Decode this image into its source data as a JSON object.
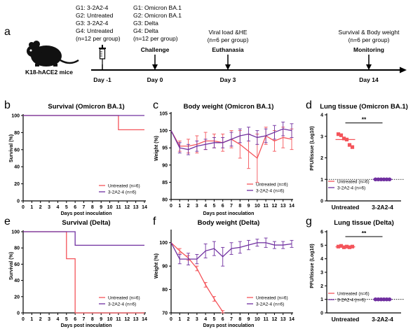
{
  "colors": {
    "untreated": "#f4545a",
    "treated": "#7030a0",
    "axis": "#000000"
  },
  "timeline": {
    "panel_letter": "a",
    "mouse_label": "K18-hACE2 mice",
    "icon": "mouse-silhouette-icon",
    "syringe_icon": "syringe-icon",
    "groups_left": [
      "G1: 3-2A2-4",
      "G2: Untreated",
      "G3: 3-2A2-4",
      "G4: Untreated",
      "(n=12 per group)"
    ],
    "day_m1": "Day -1",
    "groups_mid": [
      "G1: Omicron BA.1",
      "G2: Omicron BA.1",
      "G3: Delta",
      "G4: Delta",
      "(n=12 per group)"
    ],
    "challenge": "Challenge",
    "day_0": "Day 0",
    "viral_1": "Viral load &HE",
    "viral_2": "(n=6 per group)",
    "euthanasia": "Euthanasia",
    "day_3": "Day 3",
    "survival_1": "Survival & Body weight",
    "survival_2": "(n=6 per group)",
    "monitoring": "Monitoring",
    "day_14": "Day 14"
  },
  "panels": {
    "b": {
      "letter": "b",
      "title": "Survival (Omicron BA.1)",
      "ylabel": "Survival (%)",
      "xlabel": "Days post inoculation"
    },
    "c": {
      "letter": "c",
      "title": "Body weight (Omicron BA.1)",
      "ylabel": "Weight (%)",
      "xlabel": "Days post inoculation"
    },
    "d": {
      "letter": "d",
      "title": "Lung tissue (Omicron BA.1)",
      "ylabel": "PFU/tissue (Log10)",
      "sig": "**"
    },
    "e": {
      "letter": "e",
      "title": "Survival (Delta)",
      "ylabel": "Survival (%)",
      "xlabel": "Days post inoculation"
    },
    "f": {
      "letter": "f",
      "title": "Body weight (Delta)",
      "ylabel": "Weight (%)",
      "xlabel": "Days post inoculation"
    },
    "g": {
      "letter": "g",
      "title": "Lung tissue (Delta)",
      "ylabel": "PFU/tissue (Log10)",
      "sig": "**"
    }
  },
  "legend": {
    "untreated": "Untreated (n=6)",
    "treated": "3-2A2-4 (n=6)"
  },
  "chart_data": [
    {
      "id": "b",
      "type": "line",
      "step": true,
      "title": "Survival (Omicron BA.1)",
      "xlabel": "Days post inoculation",
      "ylabel": "Survival (%)",
      "xlim": [
        0,
        14
      ],
      "ylim": [
        0,
        100
      ],
      "xticks": [
        0,
        1,
        2,
        3,
        4,
        5,
        6,
        7,
        8,
        9,
        10,
        11,
        12,
        13,
        14
      ],
      "yticks": [
        0,
        20,
        40,
        60,
        80,
        100
      ],
      "series": [
        {
          "name": "Untreated (n=6)",
          "color": "#f4545a",
          "x": [
            0,
            11,
            11,
            14
          ],
          "y": [
            100,
            100,
            83.3,
            83.3
          ]
        },
        {
          "name": "3-2A2-4 (n=6)",
          "color": "#7030a0",
          "x": [
            0,
            14
          ],
          "y": [
            100,
            100
          ]
        }
      ]
    },
    {
      "id": "c",
      "type": "line",
      "title": "Body weight (Omicron BA.1)",
      "xlabel": "Days post inoculation",
      "ylabel": "Weight (%)",
      "xlim": [
        0,
        14
      ],
      "ylim": [
        80,
        105
      ],
      "xticks": [
        0,
        1,
        2,
        3,
        4,
        5,
        6,
        7,
        8,
        9,
        10,
        11,
        12,
        13,
        14
      ],
      "yticks": [
        80,
        85,
        90,
        95,
        100,
        105
      ],
      "series": [
        {
          "name": "Untreated (n=6)",
          "color": "#f4545a",
          "x": [
            0,
            1,
            2,
            3,
            4,
            5,
            6,
            7,
            8,
            9,
            10,
            11,
            12,
            13,
            14
          ],
          "y": [
            100,
            95.5,
            95.5,
            96,
            97,
            97,
            96.5,
            97.5,
            96,
            94,
            92,
            98.5,
            97,
            98,
            97.5
          ],
          "err": [
            0,
            1.5,
            2,
            2.5,
            2.5,
            2,
            2.5,
            2.5,
            4,
            5,
            7,
            2.5,
            3,
            3,
            3
          ]
        },
        {
          "name": "3-2A2-4 (n=6)",
          "color": "#7030a0",
          "x": [
            0,
            1,
            2,
            3,
            4,
            5,
            6,
            7,
            8,
            9,
            10,
            11,
            12,
            13,
            14
          ],
          "y": [
            100,
            95,
            94.5,
            95.5,
            96,
            96.5,
            96.5,
            97.5,
            98.5,
            99,
            98,
            98.5,
            99.5,
            100.5,
            100
          ],
          "err": [
            0,
            1.5,
            1.5,
            1.5,
            1.5,
            1.5,
            1.5,
            2,
            2,
            2,
            2,
            2,
            2,
            2,
            2
          ]
        }
      ]
    },
    {
      "id": "d",
      "type": "scatter",
      "title": "Lung tissue (Omicron BA.1)",
      "ylabel": "PFU/tissue (Log10)",
      "categories": [
        "Untreated",
        "3-2A2-4"
      ],
      "ylim": [
        0,
        4
      ],
      "yticks": [
        0,
        1,
        2,
        3,
        4
      ],
      "limit_of_detection": 1,
      "significance": "**",
      "series": [
        {
          "name": "Untreated (n=6)",
          "color": "#f4545a",
          "category": "Untreated",
          "values": [
            3.1,
            3.05,
            2.9,
            2.85,
            2.6,
            2.5
          ],
          "mean": 2.85
        },
        {
          "name": "3-2A2-4 (n=6)",
          "color": "#7030a0",
          "category": "3-2A2-4",
          "values": [
            1,
            1,
            1,
            1,
            1,
            1
          ],
          "mean": 1
        }
      ]
    },
    {
      "id": "e",
      "type": "line",
      "step": true,
      "title": "Survival (Delta)",
      "xlabel": "Days post inoculation",
      "ylabel": "Survival (%)",
      "xlim": [
        0,
        14
      ],
      "ylim": [
        0,
        100
      ],
      "xticks": [
        0,
        1,
        2,
        3,
        4,
        5,
        6,
        7,
        8,
        9,
        10,
        11,
        12,
        13,
        14
      ],
      "yticks": [
        0,
        20,
        40,
        60,
        80,
        100
      ],
      "series": [
        {
          "name": "Untreated (n=6)",
          "color": "#f4545a",
          "x": [
            0,
            5,
            5,
            6,
            6,
            14
          ],
          "y": [
            100,
            100,
            66.7,
            66.7,
            0,
            0
          ]
        },
        {
          "name": "3-2A2-4 (n=6)",
          "color": "#7030a0",
          "x": [
            0,
            6,
            6,
            14
          ],
          "y": [
            100,
            100,
            83.3,
            83.3
          ]
        }
      ]
    },
    {
      "id": "f",
      "type": "line",
      "title": "Body weight (Delta)",
      "xlabel": "Days post inoculation",
      "ylabel": "Weight (%)",
      "xlim": [
        0,
        14
      ],
      "ylim": [
        70,
        105
      ],
      "xticks": [
        0,
        1,
        2,
        3,
        4,
        5,
        6,
        7,
        8,
        9,
        10,
        11,
        12,
        13,
        14
      ],
      "yticks": [
        70,
        80,
        90,
        100
      ],
      "series": [
        {
          "name": "Untreated (n=6)",
          "color": "#f4545a",
          "x": [
            0,
            1,
            2,
            3,
            4,
            5,
            6
          ],
          "y": [
            100,
            96.5,
            93.5,
            89,
            82,
            76,
            70.5
          ],
          "err": [
            0,
            1,
            1,
            1,
            1,
            1,
            0.5
          ]
        },
        {
          "name": "3-2A2-4 (n=6)",
          "color": "#7030a0",
          "x": [
            0,
            1,
            2,
            3,
            4,
            5,
            6,
            7,
            8,
            9,
            10,
            11,
            12,
            13,
            14
          ],
          "y": [
            100,
            93,
            93,
            93,
            96.5,
            97.5,
            94,
            97.5,
            98,
            99,
            100,
            100,
            99,
            99,
            99.5
          ],
          "err": [
            0,
            2,
            2.5,
            2,
            3,
            3,
            4,
            2.5,
            2.5,
            2,
            1.5,
            2,
            1.5,
            1.5,
            1.5
          ]
        }
      ]
    },
    {
      "id": "g",
      "type": "scatter",
      "title": "Lung tissue (Delta)",
      "ylabel": "PFU/tissue (Log10)",
      "categories": [
        "Untreated",
        "3-2A2-4"
      ],
      "ylim": [
        0,
        6
      ],
      "yticks": [
        0,
        1,
        2,
        3,
        4,
        5,
        6
      ],
      "limit_of_detection": 1,
      "significance": "**",
      "series": [
        {
          "name": "Untreated (n=6)",
          "color": "#f4545a",
          "category": "Untreated",
          "values": [
            4.9,
            4.95,
            4.85,
            4.9,
            4.85,
            4.9
          ],
          "mean": 4.88
        },
        {
          "name": "3-2A2-4 (n=6)",
          "color": "#7030a0",
          "category": "3-2A2-4",
          "values": [
            1,
            1,
            1,
            1,
            1,
            1
          ],
          "mean": 1
        }
      ]
    }
  ]
}
